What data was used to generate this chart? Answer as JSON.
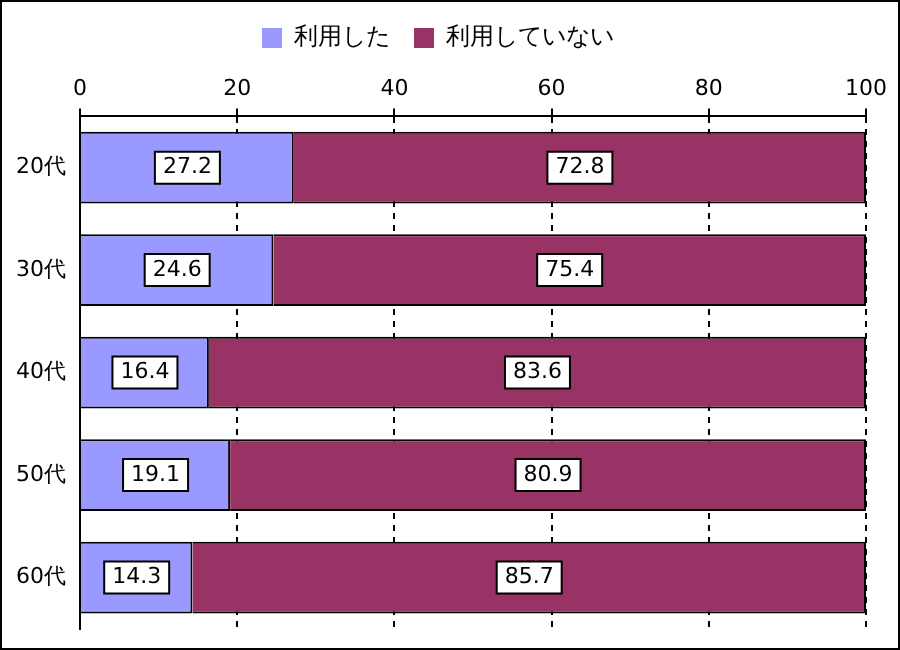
{
  "chart_data": {
    "type": "bar",
    "orientation": "horizontal",
    "stacked": true,
    "categories": [
      "20代",
      "30代",
      "40代",
      "50代",
      "60代"
    ],
    "series": [
      {
        "name": "利用した",
        "color": "#9999ff",
        "values": [
          27.2,
          24.6,
          16.4,
          19.1,
          14.3
        ]
      },
      {
        "name": "利用していない",
        "color": "#993366",
        "values": [
          72.8,
          75.4,
          83.6,
          80.9,
          85.7
        ]
      }
    ],
    "xlim": [
      0,
      100
    ],
    "xticks": [
      0,
      20,
      40,
      60,
      80,
      100
    ],
    "grid": "x",
    "legend": "top",
    "data_labels": true
  }
}
